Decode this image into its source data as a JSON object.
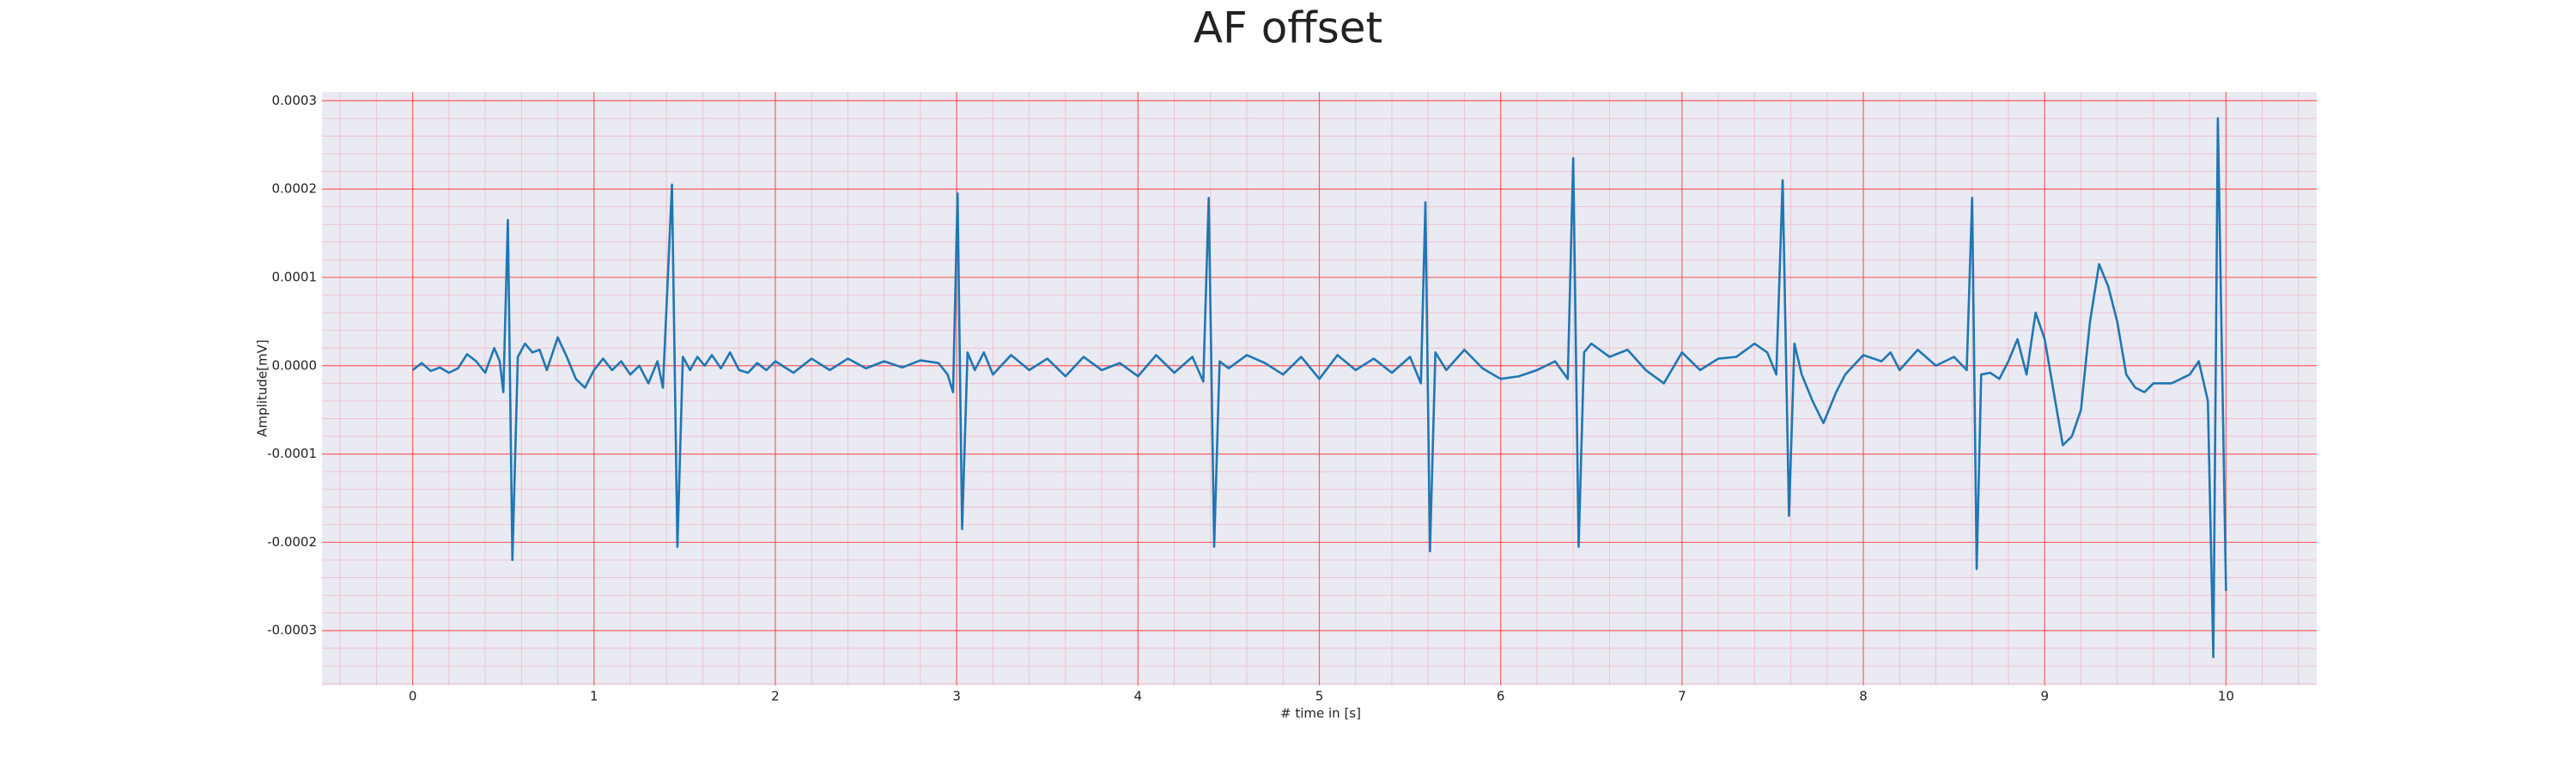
{
  "chart_data": {
    "type": "line",
    "title": "AF offset",
    "x_label": "# time in [s]",
    "y_label": "Amplitude[mV]",
    "xlim": [
      -0.5,
      10.5
    ],
    "ylim": [
      -0.000362,
      0.00031
    ],
    "xticks": [
      0,
      1,
      2,
      3,
      4,
      5,
      6,
      7,
      8,
      9,
      10
    ],
    "yticks": [
      -0.0003,
      -0.0002,
      -0.0001,
      {
        "value": 0,
        "label": "0.0000"
      },
      0.0001,
      0.0002,
      0.0003
    ],
    "grid": true,
    "minor_grid": true,
    "series": [
      {
        "color": "#1f77b4",
        "x": [
          0,
          0.05,
          0.1,
          0.15,
          0.2,
          0.25,
          0.3,
          0.35,
          0.4,
          0.45,
          0.48,
          0.5,
          0.525,
          0.55,
          0.58,
          0.62,
          0.66,
          0.7,
          0.74,
          0.8,
          0.85,
          0.9,
          0.95,
          1.0,
          1.05,
          1.1,
          1.15,
          1.2,
          1.25,
          1.3,
          1.35,
          1.38,
          1.43,
          1.46,
          1.49,
          1.53,
          1.57,
          1.61,
          1.65,
          1.7,
          1.75,
          1.8,
          1.85,
          1.9,
          1.95,
          2.0,
          2.1,
          2.2,
          2.3,
          2.4,
          2.5,
          2.6,
          2.7,
          2.8,
          2.9,
          2.95,
          2.98,
          3.005,
          3.03,
          3.06,
          3.1,
          3.15,
          3.2,
          3.3,
          3.4,
          3.5,
          3.6,
          3.7,
          3.8,
          3.9,
          4.0,
          4.1,
          4.2,
          4.3,
          4.36,
          4.39,
          4.42,
          4.45,
          4.5,
          4.6,
          4.7,
          4.8,
          4.9,
          5.0,
          5.1,
          5.2,
          5.3,
          5.4,
          5.5,
          5.56,
          5.585,
          5.61,
          5.64,
          5.7,
          5.8,
          5.9,
          6.0,
          6.1,
          6.2,
          6.3,
          6.37,
          6.4,
          6.43,
          6.46,
          6.5,
          6.6,
          6.7,
          6.8,
          6.9,
          7.0,
          7.1,
          7.2,
          7.3,
          7.4,
          7.47,
          7.52,
          7.555,
          7.59,
          7.62,
          7.66,
          7.72,
          7.78,
          7.85,
          7.9,
          8.0,
          8.1,
          8.15,
          8.2,
          8.3,
          8.4,
          8.5,
          8.57,
          8.6,
          8.625,
          8.65,
          8.7,
          8.75,
          8.8,
          8.85,
          8.9,
          8.95,
          9.0,
          9.05,
          9.1,
          9.15,
          9.2,
          9.25,
          9.3,
          9.35,
          9.4,
          9.45,
          9.5,
          9.55,
          9.6,
          9.7,
          9.8,
          9.85,
          9.9,
          9.93,
          9.955,
          10.0
        ],
        "values": [
          -5e-06,
          3e-06,
          -6e-06,
          -2e-06,
          -8e-06,
          -3e-06,
          1.3e-05,
          5e-06,
          -8e-06,
          2e-05,
          5e-06,
          -3e-05,
          0.000165,
          -0.00022,
          1e-05,
          2.5e-05,
          1.5e-05,
          1.8e-05,
          -5e-06,
          3.2e-05,
          1e-05,
          -1.5e-05,
          -2.5e-05,
          -5e-06,
          8e-06,
          -5e-06,
          5e-06,
          -1e-05,
          0,
          -2e-05,
          5e-06,
          -2.5e-05,
          0.000205,
          -0.000205,
          1e-05,
          -5e-06,
          1e-05,
          0,
          1.2e-05,
          -3e-06,
          1.5e-05,
          -5e-06,
          -8e-06,
          3e-06,
          -5e-06,
          5e-06,
          -8e-06,
          8e-06,
          -5e-06,
          8e-06,
          -3e-06,
          5e-06,
          -2e-06,
          6e-06,
          3e-06,
          -1e-05,
          -3e-05,
          0.000195,
          -0.000185,
          1.5e-05,
          -5e-06,
          1.5e-05,
          -1e-05,
          1.2e-05,
          -5e-06,
          8e-06,
          -1.2e-05,
          1e-05,
          -5e-06,
          3e-06,
          -1.2e-05,
          1.2e-05,
          -8e-06,
          1e-05,
          -1.8e-05,
          0.00019,
          -0.000205,
          5e-06,
          -3e-06,
          1.2e-05,
          3e-06,
          -1e-05,
          1e-05,
          -1.5e-05,
          1.2e-05,
          -5e-06,
          8e-06,
          -8e-06,
          1e-05,
          -2e-05,
          0.000185,
          -0.00021,
          1.5e-05,
          -5e-06,
          1.8e-05,
          -3e-06,
          -1.5e-05,
          -1.2e-05,
          -5e-06,
          5e-06,
          -1.5e-05,
          0.000235,
          -0.000205,
          1.5e-05,
          2.5e-05,
          1e-05,
          1.8e-05,
          -5e-06,
          -2e-05,
          1.5e-05,
          -5e-06,
          8e-06,
          1e-05,
          2.5e-05,
          1.5e-05,
          -1e-05,
          0.00021,
          -0.00017,
          2.5e-05,
          -1e-05,
          -4e-05,
          -6.5e-05,
          -3e-05,
          -1e-05,
          1.2e-05,
          5e-06,
          1.5e-05,
          -5e-06,
          1.8e-05,
          0,
          1e-05,
          -5e-06,
          0.00019,
          -0.00023,
          -1e-05,
          -8e-06,
          -1.5e-05,
          5e-06,
          3e-05,
          -1e-05,
          6e-05,
          3e-05,
          -3e-05,
          -9e-05,
          -8e-05,
          -5e-05,
          5e-05,
          0.000115,
          9e-05,
          5e-05,
          -1e-05,
          -2.5e-05,
          -3e-05,
          -2e-05,
          -2e-05,
          -1e-05,
          5e-06,
          -4e-05,
          -0.00033,
          0.00028,
          -0.000255
        ]
      }
    ]
  }
}
